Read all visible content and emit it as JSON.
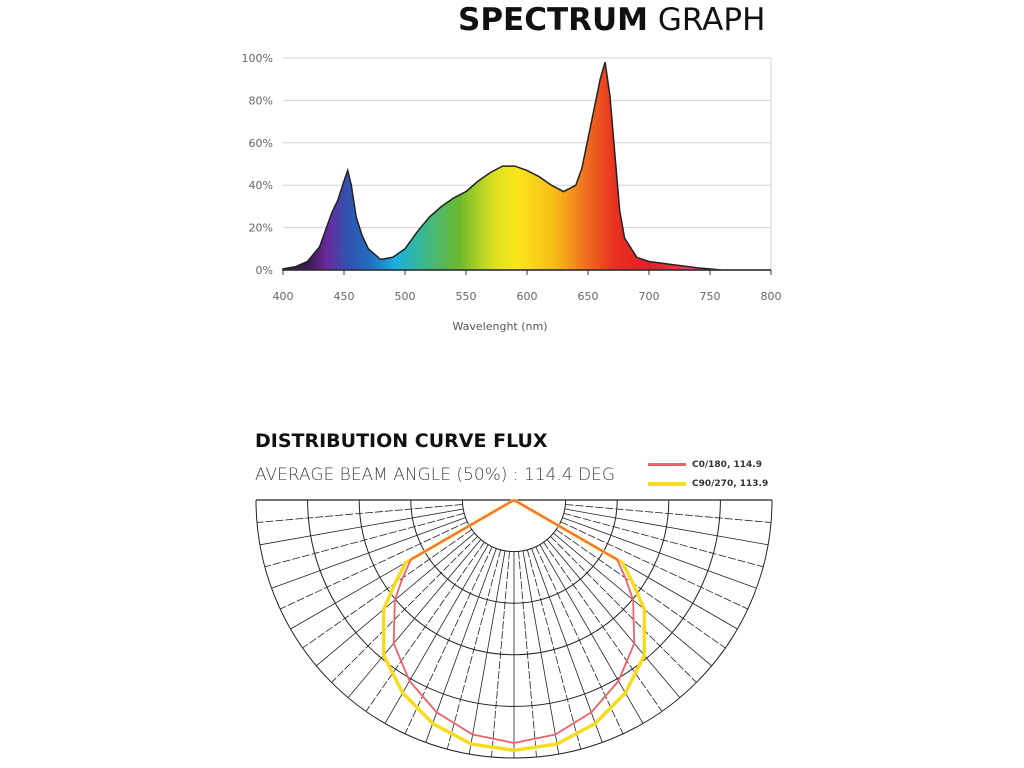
{
  "title": {
    "bold": "SPECTRUM",
    "normal": "GRAPH"
  },
  "chart_data": [
    {
      "type": "area",
      "xlabel": "Wavelenght (nm)",
      "ylabel": "",
      "xlim": [
        400,
        800
      ],
      "ylim": [
        0,
        100
      ],
      "x_ticks": [
        "400",
        "450",
        "500",
        "550",
        "600",
        "650",
        "700",
        "750",
        "800"
      ],
      "y_ticks": [
        "0%",
        "20%",
        "40%",
        "60%",
        "80%",
        "100%"
      ],
      "grid": "horizontal",
      "fill": "wavelength-color gradient",
      "x": [
        400,
        410,
        420,
        430,
        440,
        445,
        450,
        453,
        456,
        460,
        465,
        470,
        480,
        490,
        500,
        510,
        520,
        530,
        540,
        550,
        560,
        570,
        580,
        590,
        600,
        610,
        620,
        630,
        640,
        645,
        650,
        655,
        660,
        664,
        668,
        672,
        676,
        680,
        690,
        700,
        720,
        740,
        760,
        800
      ],
      "y": [
        0.5,
        1.5,
        4,
        11,
        27,
        33,
        42,
        47,
        40,
        25,
        16,
        10,
        5,
        6,
        10,
        18,
        25,
        30,
        34,
        37,
        42,
        46,
        49,
        49,
        47,
        44,
        40,
        37,
        40,
        48,
        62,
        76,
        90,
        98,
        82,
        55,
        28,
        15,
        6,
        4,
        2.5,
        1,
        0,
        0
      ]
    },
    {
      "type": "polar",
      "title": "DISTRIBUTION CURVE FLUX",
      "subtitle": "AVERAGE BEAM ANGLE  (50%) : 114.4 DEG",
      "angles_deg": [
        0,
        10,
        20,
        30,
        40,
        50,
        55,
        60,
        90
      ],
      "series": [
        {
          "name": "C0/180, 114.9",
          "color": "#f0606a",
          "values": [
            1.0,
            0.98,
            0.93,
            0.86,
            0.77,
            0.64,
            0.56,
            0.49,
            0
          ]
        },
        {
          "name": "C90/270, 113.9",
          "color": "#f5dc1e",
          "values": [
            1.0,
            0.99,
            0.95,
            0.89,
            0.81,
            0.68,
            0.58,
            0.5,
            0
          ]
        }
      ]
    }
  ]
}
